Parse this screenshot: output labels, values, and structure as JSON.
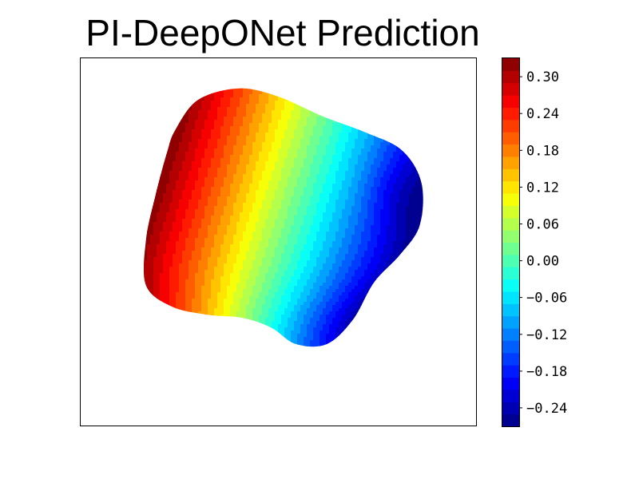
{
  "chart_data": {
    "type": "heatmap",
    "title": "PI-DeepONet Prediction",
    "xlabel": "",
    "ylabel": "",
    "colormap": "jet",
    "value_range": [
      -0.27,
      0.33
    ],
    "colorbar": {
      "levels": 30,
      "ticks": [
        {
          "value": 0.3,
          "label": "0.30"
        },
        {
          "value": 0.24,
          "label": "0.24"
        },
        {
          "value": 0.18,
          "label": "0.18"
        },
        {
          "value": 0.12,
          "label": "0.12"
        },
        {
          "value": 0.06,
          "label": "0.06"
        },
        {
          "value": 0.0,
          "label": "0.00"
        },
        {
          "value": -0.06,
          "label": "−0.06"
        },
        {
          "value": -0.12,
          "label": "−0.12"
        },
        {
          "value": -0.18,
          "label": "−0.18"
        },
        {
          "value": -0.24,
          "label": "−0.24"
        }
      ]
    },
    "field": {
      "description_values": "filled contour over a rounded irregular domain; maximum ~0.33 at upper-left edge, minimum ~-0.27 at right edge",
      "max": 0.33,
      "min": -0.27
    },
    "grid": false,
    "axes_ticks_visible": false
  }
}
